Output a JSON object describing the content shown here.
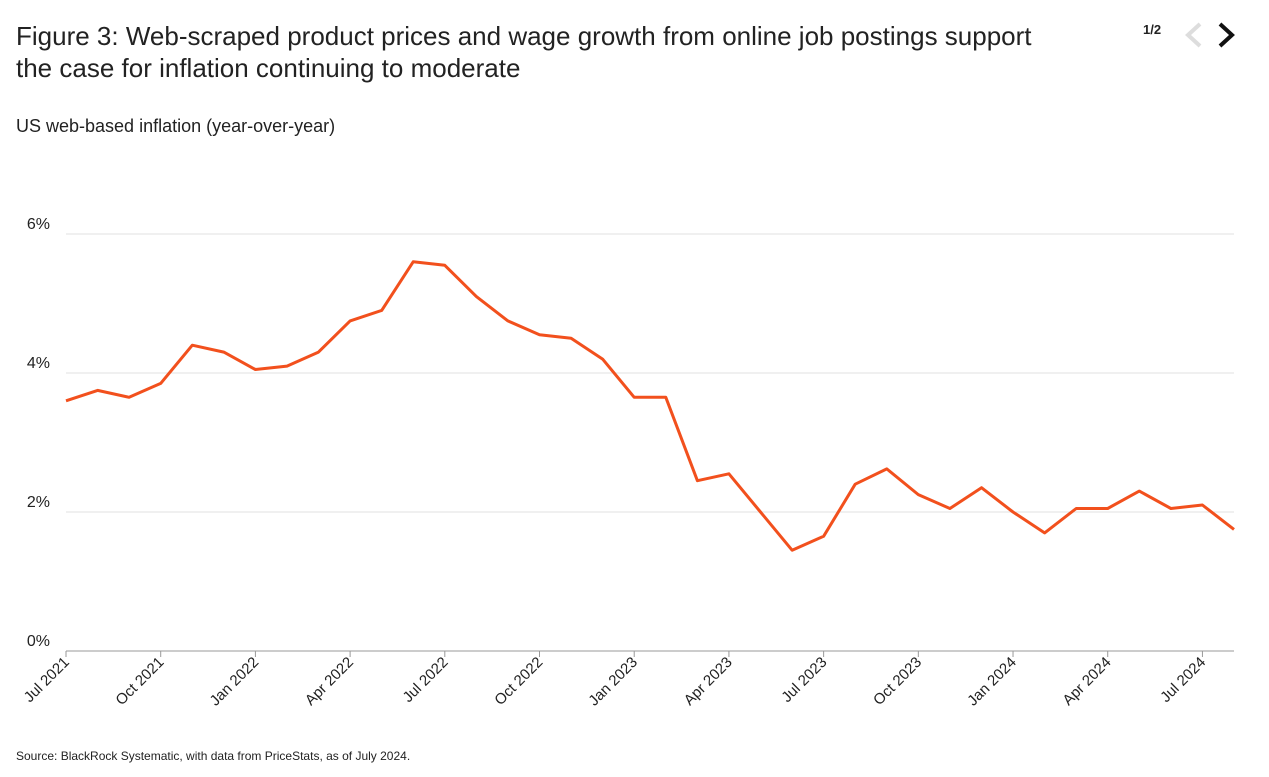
{
  "header": {
    "title": "Figure 3: Web-scraped product prices and wage growth from online job postings support the case for inflation continuing to moderate",
    "page_indicator": "1/2"
  },
  "chart_data": {
    "type": "line",
    "subtitle": "US web-based inflation (year-over-year)",
    "x": [
      "2021-07",
      "2021-08",
      "2021-09",
      "2021-10",
      "2021-11",
      "2021-12",
      "2022-01",
      "2022-02",
      "2022-03",
      "2022-04",
      "2022-05",
      "2022-06",
      "2022-07",
      "2022-08",
      "2022-09",
      "2022-10",
      "2022-11",
      "2022-12",
      "2023-01",
      "2023-02",
      "2023-03",
      "2023-04",
      "2023-05",
      "2023-06",
      "2023-07",
      "2023-08",
      "2023-09",
      "2023-10",
      "2023-11",
      "2023-12",
      "2024-01",
      "2024-02",
      "2024-03",
      "2024-04",
      "2024-05",
      "2024-06",
      "2024-07",
      "2024-08"
    ],
    "series": [
      {
        "name": "US web-based inflation",
        "color": "#f2501d",
        "values": [
          3.6,
          3.75,
          3.65,
          3.85,
          4.4,
          4.3,
          4.05,
          4.1,
          4.3,
          4.75,
          4.9,
          5.6,
          5.55,
          5.1,
          4.75,
          4.55,
          4.5,
          4.2,
          3.65,
          3.65,
          2.45,
          2.55,
          2.0,
          1.45,
          1.65,
          2.4,
          2.62,
          2.25,
          2.05,
          2.35,
          2.0,
          1.7,
          2.05,
          2.05,
          2.3,
          2.05,
          2.1,
          1.75
        ]
      }
    ],
    "xlim": [
      "2021-07",
      "2024-08"
    ],
    "xticks": [
      {
        "value": "2021-07",
        "label": "Jul 2021"
      },
      {
        "value": "2021-10",
        "label": "Oct 2021"
      },
      {
        "value": "2022-01",
        "label": "Jan 2022"
      },
      {
        "value": "2022-04",
        "label": "Apr 2022"
      },
      {
        "value": "2022-07",
        "label": "Jul 2022"
      },
      {
        "value": "2022-10",
        "label": "Oct 2022"
      },
      {
        "value": "2023-01",
        "label": "Jan 2023"
      },
      {
        "value": "2023-04",
        "label": "Apr 2023"
      },
      {
        "value": "2023-07",
        "label": "Jul 2023"
      },
      {
        "value": "2023-10",
        "label": "Oct 2023"
      },
      {
        "value": "2024-01",
        "label": "Jan 2024"
      },
      {
        "value": "2024-04",
        "label": "Apr 2024"
      },
      {
        "value": "2024-07",
        "label": "Jul 2024"
      }
    ],
    "ylim": [
      0,
      6
    ],
    "yticks": [
      {
        "value": 0,
        "label": "0%"
      },
      {
        "value": 2,
        "label": "2%"
      },
      {
        "value": 4,
        "label": "4%"
      },
      {
        "value": 6,
        "label": "6%"
      }
    ],
    "grid": true,
    "source": "Source: BlackRock Systematic, with data from PriceStats, as of July 2024."
  }
}
